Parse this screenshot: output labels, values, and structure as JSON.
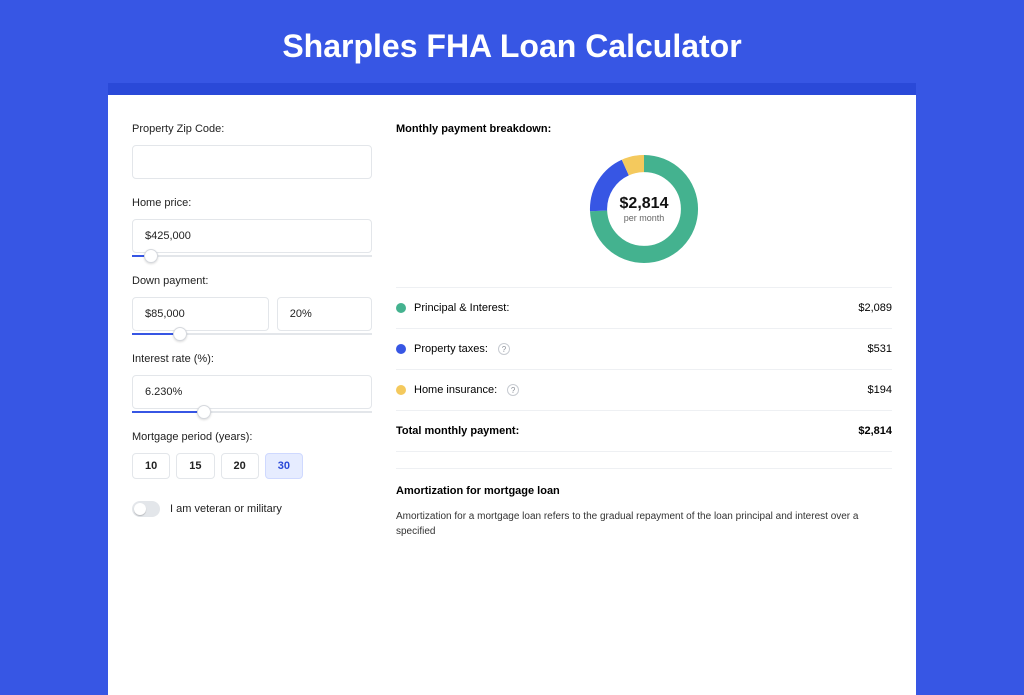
{
  "title": "Sharples FHA Loan Calculator",
  "colors": {
    "bg": "#3756e4",
    "cardWrap": "#2a49d8",
    "series": {
      "principal": "#44b28f",
      "taxes": "#3756e4",
      "insurance": "#f4c95d"
    }
  },
  "form": {
    "zip": {
      "label": "Property Zip Code:",
      "value": ""
    },
    "homePrice": {
      "label": "Home price:",
      "value": "$425,000",
      "sliderPct": 8
    },
    "downPayment": {
      "label": "Down payment:",
      "amount": "$85,000",
      "percent": "20%",
      "sliderPct": 20
    },
    "interest": {
      "label": "Interest rate (%):",
      "value": "6.230%",
      "sliderPct": 30
    },
    "period": {
      "label": "Mortgage period (years):",
      "options": [
        "10",
        "15",
        "20",
        "30"
      ],
      "selected": "30"
    },
    "veteran": {
      "label": "I am veteran or military",
      "checked": false
    }
  },
  "breakdown": {
    "heading": "Monthly payment breakdown:",
    "centerAmount": "$2,814",
    "centerSub": "per month",
    "donut": {
      "principal": 74.2,
      "taxes": 18.9,
      "insurance": 6.9
    },
    "rows": [
      {
        "label": "Principal & Interest:",
        "amount": "$2,089",
        "colorKey": "principal",
        "help": false
      },
      {
        "label": "Property taxes:",
        "amount": "$531",
        "colorKey": "taxes",
        "help": true
      },
      {
        "label": "Home insurance:",
        "amount": "$194",
        "colorKey": "insurance",
        "help": true
      }
    ],
    "total": {
      "label": "Total monthly payment:",
      "amount": "$2,814"
    }
  },
  "amortization": {
    "heading": "Amortization for mortgage loan",
    "text": "Amortization for a mortgage loan refers to the gradual repayment of the loan principal and interest over a specified"
  }
}
